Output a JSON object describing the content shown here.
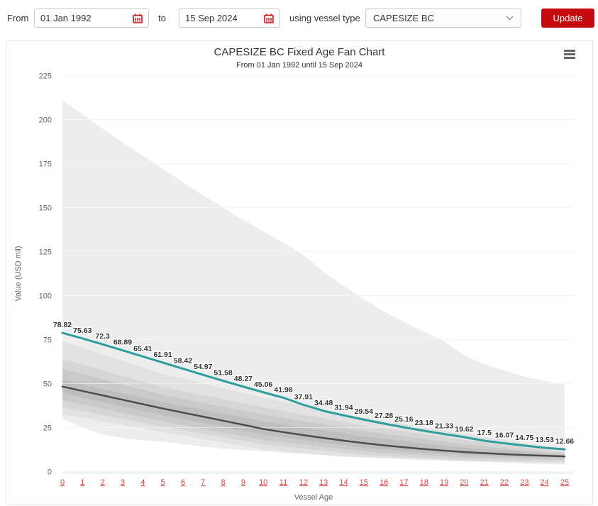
{
  "toolbar": {
    "from_label": "From",
    "from_value": "01 Jan 1992",
    "to_label": "to",
    "to_value": "15 Sep 2024",
    "vessel_type_label": "using vessel type",
    "vessel_type_value": "CAPESIZE BC",
    "update_label": "Update",
    "calendar_icon_color": "#c8100f",
    "accent_red": "#c50b10"
  },
  "chart": {
    "title": "CAPESIZE BC Fixed Age Fan Chart",
    "subtitle": "From 01 Jan 1992 until 15 Sep 2024",
    "menu_icon": "hamburger-icon"
  },
  "chart_data": {
    "type": "area",
    "title": "CAPESIZE BC Fixed Age Fan Chart",
    "subtitle": "From 01 Jan 1992 until 15 Sep 2024",
    "xlabel": "Vessel Age",
    "ylabel": "Value (USD mil)",
    "xlim": [
      0,
      25
    ],
    "ylim": [
      0,
      225
    ],
    "grid": true,
    "legend_position": "none",
    "x_ticks": [
      0,
      1,
      2,
      3,
      4,
      5,
      6,
      7,
      8,
      9,
      10,
      11,
      12,
      13,
      14,
      15,
      16,
      17,
      18,
      19,
      20,
      21,
      22,
      23,
      24,
      25
    ],
    "y_ticks": [
      0,
      25,
      50,
      75,
      100,
      125,
      150,
      175,
      200,
      225
    ],
    "x_tick_link_color": "#d64541",
    "categories": [
      0,
      1,
      2,
      3,
      4,
      5,
      6,
      7,
      8,
      9,
      10,
      11,
      12,
      13,
      14,
      15,
      16,
      17,
      18,
      19,
      20,
      21,
      22,
      23,
      24,
      25
    ],
    "series": [
      {
        "name": "fixed-age-value",
        "type": "line",
        "color": "#2e9e9e",
        "width": 3,
        "data_labels": true,
        "values": [
          78.82,
          75.63,
          72.3,
          68.89,
          65.41,
          61.91,
          58.42,
          54.97,
          51.58,
          48.27,
          45.06,
          41.98,
          37.91,
          34.48,
          31.94,
          29.54,
          27.28,
          25.16,
          23.18,
          21.33,
          19.62,
          17.5,
          16.07,
          14.75,
          13.53,
          12.66
        ]
      },
      {
        "name": "historical-median",
        "type": "line",
        "color": "#4d4d4d",
        "width": 2.5,
        "data_labels": false,
        "values": [
          48.3,
          45.8,
          43.3,
          40.8,
          38.3,
          35.8,
          33.5,
          31.2,
          28.9,
          26.6,
          24.2,
          22.4,
          20.7,
          19.1,
          17.6,
          16.2,
          14.9,
          13.8,
          12.8,
          11.9,
          11.1,
          10.5,
          9.9,
          9.4,
          9,
          8.6
        ]
      }
    ],
    "bands": [
      {
        "name": "envelope",
        "color": "#ededed",
        "upper": [
          211,
          203,
          195,
          187,
          179.5,
          172,
          164.5,
          157,
          150,
          143,
          136.5,
          130,
          123,
          113.5,
          105.5,
          98,
          91,
          85,
          79.5,
          74,
          66,
          61,
          57.5,
          54,
          51.5,
          49.5
        ],
        "lower": [
          30,
          25,
          21,
          19,
          17.8,
          17,
          15.6,
          14.2,
          13,
          12.2,
          11.5,
          10.7,
          10,
          9.3,
          8.6,
          8,
          7.5,
          7,
          6.5,
          6.1,
          5.8,
          5.4,
          5,
          4.6,
          4.3,
          4
        ]
      },
      {
        "name": "band-outer",
        "color": "#e2e2e2",
        "upper": [
          74,
          70.3,
          66.6,
          62.9,
          59.2,
          55.5,
          52.8,
          50.1,
          47.4,
          44.7,
          42,
          39.7,
          37.4,
          35.1,
          32.8,
          30.5,
          28.7,
          26.9,
          25.1,
          23.3,
          21.5,
          19.7,
          17.9,
          16.1,
          14.3,
          12.5
        ],
        "lower": [
          32.5,
          30.5,
          28.5,
          26.5,
          24.5,
          22.5,
          20.5,
          18.5,
          16.5,
          14.5,
          12.5,
          11.5,
          10.5,
          9.5,
          8.5,
          8.2,
          7.8,
          7.4,
          7,
          6.6,
          6.2,
          5.9,
          5.6,
          5.3,
          5,
          4.8
        ]
      },
      {
        "name": "band-mid-outer",
        "color": "#d6d6d6",
        "upper": [
          64,
          60.8,
          57.6,
          54.4,
          51.2,
          48,
          45.7,
          43.4,
          41.1,
          38.8,
          36.5,
          34.4,
          32.3,
          30.2,
          28.1,
          26,
          24.4,
          22.8,
          21.2,
          19.6,
          18,
          16.6,
          15.2,
          13.8,
          12.4,
          11
        ],
        "lower": [
          36.5,
          34.3,
          32.1,
          29.9,
          27.7,
          25.5,
          23.5,
          21.5,
          19.5,
          17.5,
          15.5,
          14.3,
          13.1,
          11.9,
          10.7,
          9.5,
          8.9,
          8.3,
          7.7,
          7.1,
          6.5,
          6.3,
          6.1,
          5.9,
          5.8,
          5.6
        ]
      },
      {
        "name": "band-mid-inner",
        "color": "#cacaca",
        "upper": [
          58.5,
          55.5,
          52.5,
          49.5,
          46.5,
          43.5,
          41.3,
          39.1,
          36.9,
          34.7,
          32.5,
          30.6,
          28.7,
          26.8,
          24.9,
          23,
          21.5,
          20,
          18.5,
          17,
          15.5,
          14.4,
          13.3,
          12.2,
          11.1,
          10
        ],
        "lower": [
          40.5,
          38.1,
          35.7,
          33.3,
          30.9,
          28.5,
          26.4,
          24.3,
          22.2,
          20.1,
          18,
          16.7,
          15.4,
          14.1,
          12.8,
          11.5,
          10.7,
          10,
          9.3,
          8.6,
          8,
          7.7,
          7.4,
          7.2,
          7,
          6.8
        ]
      },
      {
        "name": "band-inner",
        "color": "#bebebe",
        "upper": [
          52,
          49.5,
          47,
          44.5,
          42,
          39.5,
          37.3,
          35.1,
          32.9,
          30.7,
          28.5,
          26.8,
          25.1,
          23.4,
          21.7,
          20,
          18.7,
          17.4,
          16.1,
          14.8,
          13.5,
          12.7,
          11.9,
          11.1,
          10.2,
          9.3
        ],
        "lower": [
          44.5,
          42,
          39.5,
          37,
          34.5,
          32,
          29.8,
          27.6,
          25.4,
          23.2,
          21,
          19.5,
          18,
          16.5,
          15,
          13.5,
          12.6,
          11.7,
          10.9,
          10.2,
          9.5,
          9.1,
          8.7,
          8.4,
          8.1,
          7.8
        ]
      }
    ]
  }
}
